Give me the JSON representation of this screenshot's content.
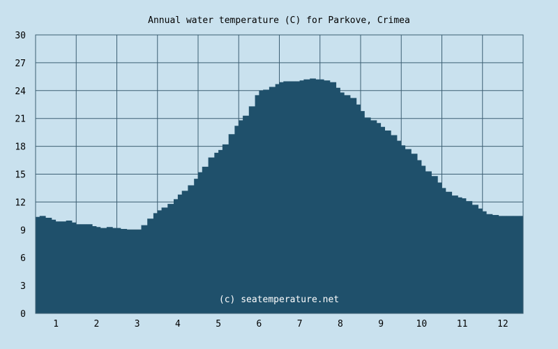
{
  "chart_data": {
    "type": "area",
    "title": "Annual water temperature (C) for Parkove, Crimea",
    "credit": "(c) seatemperature.net",
    "xlabel": "",
    "ylabel": "",
    "categories": [
      "1",
      "2",
      "3",
      "4",
      "5",
      "6",
      "7",
      "8",
      "9",
      "10",
      "11",
      "12"
    ],
    "x_range": [
      0.5,
      12.5
    ],
    "ylim": [
      0,
      30
    ],
    "y_ticks": [
      "0",
      "3",
      "6",
      "9",
      "12",
      "15",
      "18",
      "21",
      "24",
      "27",
      "30"
    ],
    "grid": true,
    "legend": "none",
    "colors": {
      "background": "#c9e1ee",
      "fill": "#1f506b",
      "grid": "#3c5f73"
    },
    "series": [
      {
        "x": [
          0.5,
          0.6,
          0.75,
          0.9,
          1.0,
          1.1,
          1.25,
          1.4,
          1.5,
          1.6,
          1.75,
          1.9,
          2.0,
          2.1,
          2.25,
          2.4,
          2.5,
          2.6,
          2.75,
          2.9,
          3.0,
          3.1,
          3.25,
          3.4,
          3.5,
          3.6,
          3.75,
          3.9,
          4.0,
          4.1,
          4.25,
          4.4,
          4.5,
          4.6,
          4.75,
          4.9,
          5.0,
          5.1,
          5.25,
          5.4,
          5.5,
          5.6,
          5.75,
          5.9,
          6.0,
          6.1,
          6.25,
          6.4,
          6.5,
          6.6,
          6.75,
          6.9,
          7.0,
          7.1,
          7.25,
          7.4,
          7.5,
          7.6,
          7.75,
          7.9,
          8.0,
          8.1,
          8.25,
          8.4,
          8.5,
          8.6,
          8.75,
          8.9,
          9.0,
          9.1,
          9.25,
          9.4,
          9.5,
          9.6,
          9.75,
          9.9,
          10.0,
          10.1,
          10.25,
          10.4,
          10.5,
          10.6,
          10.75,
          10.9,
          11.0,
          11.1,
          11.25,
          11.4,
          11.5,
          11.6,
          11.75,
          11.9,
          12.0,
          12.1,
          12.25,
          12.4,
          12.5
        ],
        "values": [
          10.4,
          10.5,
          10.3,
          10.1,
          9.9,
          9.9,
          10.0,
          9.8,
          9.6,
          9.6,
          9.6,
          9.4,
          9.3,
          9.2,
          9.3,
          9.2,
          9.2,
          9.1,
          9.0,
          9.0,
          9.0,
          9.5,
          10.2,
          10.8,
          11.1,
          11.4,
          11.8,
          12.3,
          12.8,
          13.2,
          13.8,
          14.5,
          15.2,
          15.8,
          16.8,
          17.3,
          17.6,
          18.2,
          19.3,
          20.2,
          20.8,
          21.3,
          22.3,
          23.5,
          24.0,
          24.1,
          24.4,
          24.7,
          24.9,
          25.0,
          25.0,
          25.0,
          25.1,
          25.2,
          25.3,
          25.2,
          25.2,
          25.1,
          24.9,
          24.3,
          23.8,
          23.5,
          23.2,
          22.5,
          21.8,
          21.1,
          20.8,
          20.5,
          20.1,
          19.7,
          19.2,
          18.6,
          18.1,
          17.7,
          17.2,
          16.5,
          15.9,
          15.3,
          14.8,
          14.1,
          13.5,
          13.1,
          12.7,
          12.5,
          12.4,
          12.1,
          11.7,
          11.3,
          11.0,
          10.7,
          10.6,
          10.5,
          10.5,
          10.5,
          10.5,
          10.5,
          10.6
        ]
      }
    ]
  }
}
